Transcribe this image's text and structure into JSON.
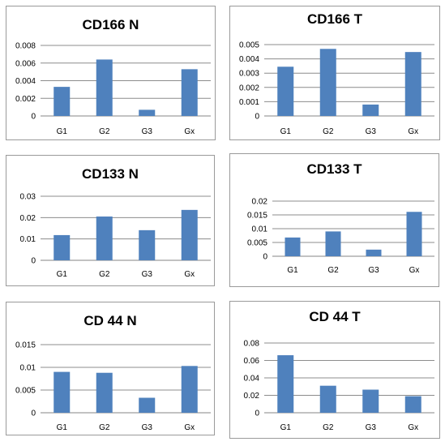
{
  "chart_data": [
    {
      "type": "bar",
      "title": "CD166 N",
      "categories": [
        "G1",
        "G2",
        "G3",
        "Gx"
      ],
      "values": [
        0.0033,
        0.0064,
        0.0007,
        0.0053
      ],
      "ylim": [
        0,
        0.008
      ],
      "yticks": [
        "0",
        "0.002",
        "0.004",
        "0.006",
        "0.008"
      ],
      "grid": true,
      "bar_color": "#4f81bd"
    },
    {
      "type": "bar",
      "title": "CD166 T",
      "categories": [
        "G1",
        "G2",
        "G3",
        "Gx"
      ],
      "values": [
        0.00345,
        0.0047,
        0.0008,
        0.00448
      ],
      "ylim": [
        0,
        0.005
      ],
      "yticks": [
        "0",
        "0.001",
        "0.002",
        "0.003",
        "0.004",
        "0.005"
      ],
      "grid": true,
      "bar_color": "#4f81bd"
    },
    {
      "type": "bar",
      "title": "CD133 N",
      "categories": [
        "G1",
        "G2",
        "G3",
        "Gx"
      ],
      "values": [
        0.0118,
        0.0205,
        0.0141,
        0.0236
      ],
      "ylim": [
        0,
        0.03
      ],
      "yticks": [
        "0",
        "0.01",
        "0.02",
        "0.03"
      ],
      "grid": true,
      "bar_color": "#4f81bd"
    },
    {
      "type": "bar",
      "title": "CD133 T",
      "categories": [
        "G1",
        "G2",
        "G3",
        "Gx"
      ],
      "values": [
        0.0068,
        0.009,
        0.0024,
        0.0161
      ],
      "ylim": [
        0,
        0.02
      ],
      "yticks": [
        "0",
        "0.005",
        "0.01",
        "0.015",
        "0.02"
      ],
      "grid": true,
      "bar_color": "#4f81bd"
    },
    {
      "type": "bar",
      "title": "CD 44 N",
      "categories": [
        "G1",
        "G2",
        "G3",
        "Gx"
      ],
      "values": [
        0.009,
        0.0088,
        0.0033,
        0.0103
      ],
      "ylim": [
        0,
        0.015
      ],
      "yticks": [
        "0",
        "0.005",
        "0.01",
        "0.015"
      ],
      "grid": true,
      "bar_color": "#4f81bd"
    },
    {
      "type": "bar",
      "title": "CD 44 T",
      "categories": [
        "G1",
        "G2",
        "G3",
        "Gx"
      ],
      "values": [
        0.066,
        0.031,
        0.0265,
        0.019
      ],
      "ylim": [
        0,
        0.08
      ],
      "yticks": [
        "0",
        "0.02",
        "0.04",
        "0.06",
        "0.08"
      ],
      "grid": true,
      "bar_color": "#4f81bd"
    }
  ]
}
